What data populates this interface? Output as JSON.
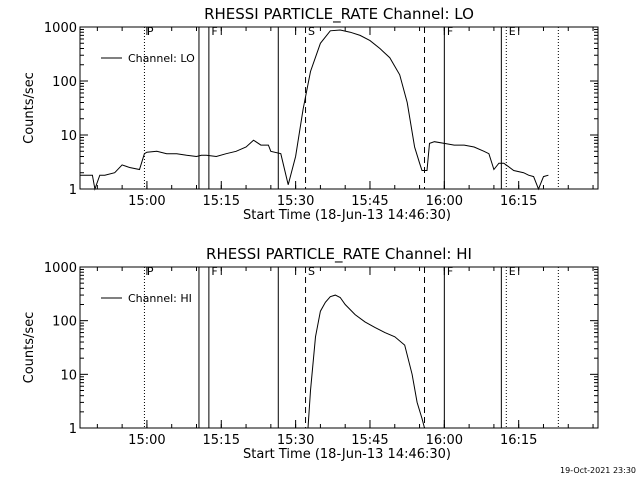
{
  "chart_data": [
    {
      "type": "line",
      "title": "RHESSI PARTICLE_RATE Channel: LO",
      "xlabel": "Start Time (18-Jun-13 14:46:30)",
      "ylabel": "Counts/sec",
      "yscale": "log",
      "xlim": [
        "14:46:30",
        "16:31:00"
      ],
      "ylim": [
        1,
        1000
      ],
      "x_ticks": [
        "15:00",
        "15:15",
        "15:30",
        "15:45",
        "16:00",
        "16:15"
      ],
      "y_ticks": [
        "1",
        "10",
        "100",
        "1000"
      ],
      "grid": false,
      "legend": "top-left",
      "series": [
        {
          "name": "Channel: LO",
          "x": [
            "14:46:30",
            "14:49:00",
            "14:49:30",
            "14:50:30",
            "14:51:30",
            "14:53:30",
            "14:55:00",
            "14:56:30",
            "14:58:30",
            "14:59:30",
            "15:00:00",
            "15:02:00",
            "15:04:00",
            "15:06:00",
            "15:08:00",
            "15:10:00",
            "15:11:00",
            "15:12:00",
            "15:14:00",
            "15:16:00",
            "15:18:00",
            "15:20:00",
            "15:21:30",
            "15:23:00",
            "15:24:30",
            "15:25:00",
            "15:27:00",
            "15:28:30",
            "15:29:00",
            "15:30:00",
            "15:31:30",
            "15:33:00",
            "15:35:00",
            "15:37:00",
            "15:39:00",
            "15:41:00",
            "15:43:00",
            "15:45:00",
            "15:47:00",
            "15:49:00",
            "15:51:00",
            "15:52:30",
            "15:54:00",
            "15:55:00",
            "15:55:30",
            "15:56:30",
            "15:57:00",
            "15:58:00",
            "16:00:00",
            "16:02:00",
            "16:04:00",
            "16:06:00",
            "16:08:00",
            "16:09:00",
            "16:10:00",
            "16:11:00",
            "16:12:00",
            "16:14:00",
            "16:16:00",
            "16:17:00",
            "16:18:00",
            "16:19:00",
            "16:20:00",
            "16:21:00"
          ],
          "y": [
            1.8,
            1.8,
            1,
            1.8,
            1.8,
            2,
            2.8,
            2.5,
            2.3,
            4.5,
            4.8,
            5,
            4.5,
            4.5,
            4.2,
            4,
            4.2,
            4.2,
            4,
            4.5,
            5,
            6,
            8,
            6.5,
            6.5,
            5,
            4.5,
            1.2,
            1.8,
            4,
            30,
            150,
            500,
            850,
            880,
            800,
            700,
            560,
            400,
            270,
            130,
            40,
            6,
            3,
            2.2,
            2.2,
            7,
            7.5,
            7,
            6.5,
            6.5,
            6,
            5,
            4.5,
            2.3,
            3,
            3,
            2.2,
            2,
            1.8,
            1.7,
            1,
            1.7,
            1.8
          ]
        }
      ],
      "event_markers": {
        "solid_x": [
          "15:10:30",
          "15:12:30",
          "15:26:30",
          "16:00:00",
          "16:11:30"
        ],
        "dashed_x": [
          "15:32:00",
          "15:56:00"
        ],
        "dotted_x": [
          "14:59:30",
          "16:12:30",
          "16:23:00"
        ],
        "labels": [
          {
            "text": "P",
            "x": "15:00:00"
          },
          {
            "text": "F",
            "x": "15:13:00"
          },
          {
            "text": "S",
            "x": "15:32:30"
          },
          {
            "text": "F",
            "x": "16:00:30"
          },
          {
            "text": "E",
            "x": "16:13:00"
          }
        ]
      }
    },
    {
      "type": "line",
      "title": "RHESSI PARTICLE_RATE Channel: HI",
      "xlabel": "Start Time (18-Jun-13 14:46:30)",
      "ylabel": "Counts/sec",
      "yscale": "log",
      "xlim": [
        "14:46:30",
        "16:31:00"
      ],
      "ylim": [
        1,
        1000
      ],
      "x_ticks": [
        "15:00",
        "15:15",
        "15:30",
        "15:45",
        "16:00",
        "16:15"
      ],
      "y_ticks": [
        "1",
        "10",
        "100",
        "1000"
      ],
      "grid": false,
      "legend": "top-left",
      "series": [
        {
          "name": "Channel: HI",
          "x": [
            "15:32:30",
            "15:33:00",
            "15:34:00",
            "15:35:00",
            "15:36:00",
            "15:37:00",
            "15:38:00",
            "15:39:00",
            "15:40:00",
            "15:42:00",
            "15:44:00",
            "15:46:00",
            "15:48:00",
            "15:50:00",
            "15:52:00",
            "15:53:30",
            "15:54:30",
            "15:55:30",
            "15:56:00"
          ],
          "y": [
            1,
            5,
            50,
            150,
            220,
            280,
            300,
            270,
            200,
            130,
            95,
            75,
            60,
            50,
            35,
            10,
            3,
            1.5,
            1
          ]
        }
      ],
      "event_markers": {
        "solid_x": [
          "15:10:30",
          "15:12:30",
          "15:26:30",
          "16:00:00",
          "16:11:30"
        ],
        "dashed_x": [
          "15:32:00",
          "15:56:00"
        ],
        "dotted_x": [
          "14:59:30",
          "16:12:30",
          "16:23:00"
        ],
        "labels": [
          {
            "text": "P",
            "x": "15:00:00"
          },
          {
            "text": "F",
            "x": "15:13:00"
          },
          {
            "text": "S",
            "x": "15:32:30"
          },
          {
            "text": "F",
            "x": "16:00:30"
          },
          {
            "text": "E",
            "x": "16:13:00"
          }
        ]
      }
    }
  ],
  "footer": {
    "timestamp": "19-Oct-2021 23:30"
  }
}
